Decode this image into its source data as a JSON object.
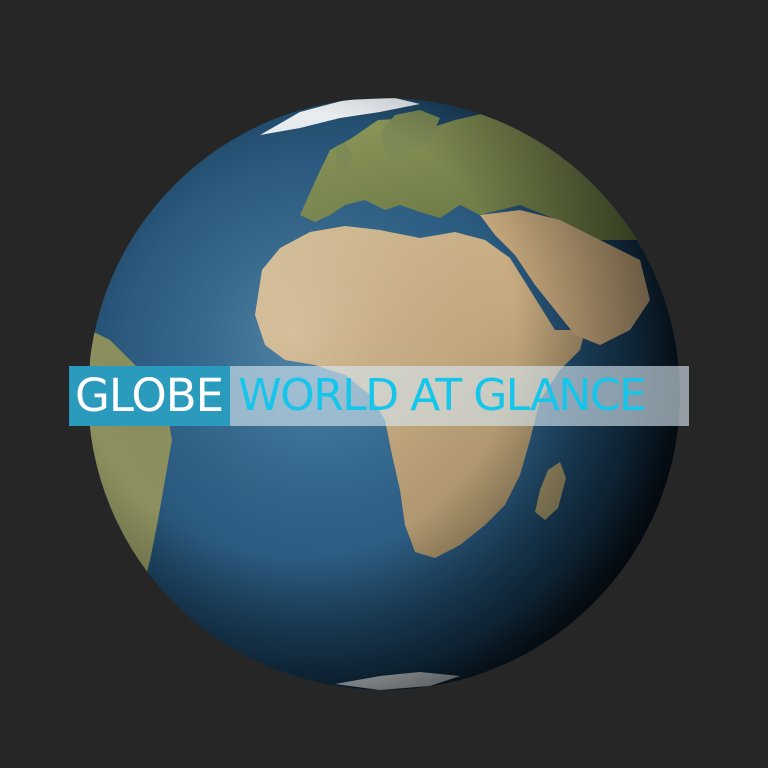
{
  "banner": {
    "brand": "GLOBE",
    "tagline": "WORLD AT GLANCE"
  },
  "colors": {
    "background": "#262626",
    "ocean": "#2d5b7e",
    "land": "#cbb38e",
    "brand_bg": "#2a9bbd",
    "tagline_text": "#16c6ea"
  }
}
